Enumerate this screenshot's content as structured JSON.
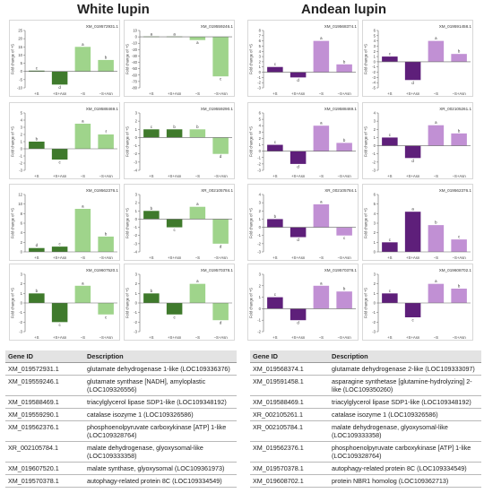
{
  "titles": {
    "white": "White lupin",
    "andean": "Andean lupin"
  },
  "colors": {
    "white_dark": "#3f7a2c",
    "white_light": "#9fd48b",
    "andean_dark": "#5e1f7a",
    "andean_light": "#c190d4"
  },
  "chart_data": [
    {
      "type": "bar",
      "group": "white",
      "gene": "XM_019572931.1",
      "categories": [
        "+S",
        "+S+Asn",
        "−S",
        "−S+Asn"
      ],
      "values": [
        0.5,
        -8,
        15,
        7
      ],
      "letters": [
        "c",
        "d",
        "a",
        "b"
      ],
      "ylim": [
        -10,
        25
      ],
      "yticks": [
        -10,
        -5,
        0,
        5,
        10,
        15,
        20,
        25
      ],
      "ylabel": "Fold change of +S"
    },
    {
      "type": "bar",
      "group": "white",
      "gene": "XM_019559246.1",
      "categories": [
        "+S",
        "+S+Asn",
        "−S",
        "−S+Asn"
      ],
      "values": [
        0.5,
        0.5,
        -5,
        -62
      ],
      "letters": [
        "a",
        "a",
        "a",
        "c"
      ],
      "ylim": [
        -80,
        10
      ],
      "yticks": [
        -80,
        -70,
        -60,
        -50,
        -40,
        -30,
        -20,
        -10,
        0,
        10
      ],
      "ylabel": "Fold change of +S"
    },
    {
      "type": "bar",
      "group": "white",
      "gene": "XM_019588469.1",
      "categories": [
        "+S",
        "+S+Asn",
        "−S",
        "−S+Asn"
      ],
      "values": [
        1,
        -1.5,
        3.5,
        2
      ],
      "letters": [
        "b",
        "c",
        "a",
        "f"
      ],
      "ylim": [
        -3,
        5
      ],
      "yticks": [
        -3,
        -2,
        -1,
        0,
        1,
        2,
        3,
        4,
        5
      ],
      "ylabel": "Fold change of +S"
    },
    {
      "type": "bar",
      "group": "white",
      "gene": "XM_019559290.1",
      "categories": [
        "+S",
        "+S+Asn",
        "−S",
        "−S+Asn"
      ],
      "values": [
        1,
        1,
        1,
        -2
      ],
      "letters": [
        "c",
        "b",
        "b",
        "d"
      ],
      "ylim": [
        -4,
        3
      ],
      "yticks": [
        -4,
        -3,
        -2,
        -1,
        0,
        1,
        2,
        3
      ],
      "ylabel": "Fold change of +S"
    },
    {
      "type": "bar",
      "group": "white",
      "gene": "XM_019562376.1",
      "categories": [
        "+S",
        "+S+Asn",
        "−S",
        "−S+Asn"
      ],
      "values": [
        0.8,
        1.1,
        9,
        3.2
      ],
      "letters": [
        "d",
        "c",
        "a",
        "b"
      ],
      "ylim": [
        0,
        12
      ],
      "yticks": [
        0,
        2,
        4,
        6,
        8,
        10,
        12
      ],
      "ylabel": "Fold change of +S"
    },
    {
      "type": "bar",
      "group": "white",
      "gene": "XR_002105784.1",
      "categories": [
        "+S",
        "+S+Asn",
        "−S",
        "−S+Asn"
      ],
      "values": [
        1,
        -1,
        1.5,
        -3
      ],
      "letters": [
        "b",
        "c",
        "a",
        "d"
      ],
      "ylim": [
        -4,
        3
      ],
      "yticks": [
        -4,
        -3,
        -2,
        -1,
        0,
        1,
        2,
        3
      ],
      "ylabel": "Fold change of +S"
    },
    {
      "type": "bar",
      "group": "white",
      "gene": "XM_019607520.1",
      "categories": [
        "+S",
        "+S+Asn",
        "−S",
        "−S+Asn"
      ],
      "values": [
        1,
        -2,
        1.8,
        -1.2
      ],
      "letters": [
        "b",
        "c",
        "a",
        "c"
      ],
      "ylim": [
        -3,
        3
      ],
      "yticks": [
        -3,
        -2,
        -1,
        0,
        1,
        2,
        3
      ],
      "ylabel": "Fold change of +S"
    },
    {
      "type": "bar",
      "group": "white",
      "gene": "XM_019570378.1",
      "categories": [
        "+S",
        "+S+Asn",
        "−S",
        "−S+Asn"
      ],
      "values": [
        1,
        -1.2,
        2,
        -1.8
      ],
      "letters": [
        "b",
        "c",
        "a",
        "d"
      ],
      "ylim": [
        -3,
        3
      ],
      "yticks": [
        -3,
        -2,
        -1,
        0,
        1,
        2,
        3
      ],
      "ylabel": "Fold change of +S"
    },
    {
      "type": "bar",
      "group": "andean",
      "gene": "XM_019568374.1",
      "categories": [
        "+S",
        "+S+Asn",
        "−S",
        "−S+Asn"
      ],
      "values": [
        1,
        -1,
        6,
        1.5
      ],
      "letters": [
        "c",
        "d",
        "a",
        "b"
      ],
      "ylim": [
        -3,
        8
      ],
      "yticks": [
        -3,
        -2,
        -1,
        0,
        1,
        2,
        3,
        4,
        5,
        6,
        7,
        8
      ],
      "ylabel": "Fold change of +S"
    },
    {
      "type": "bar",
      "group": "andean",
      "gene": "XM_019591458.1",
      "categories": [
        "+S",
        "+S+Asn",
        "−S",
        "−S+Asn"
      ],
      "values": [
        1,
        -3.5,
        4,
        1.5
      ],
      "letters": [
        "c",
        "d",
        "a",
        "b"
      ],
      "ylim": [
        -5,
        6
      ],
      "yticks": [
        -5,
        -4,
        -3,
        -2,
        -1,
        0,
        1,
        2,
        3,
        4,
        5,
        6
      ],
      "ylabel": "Fold change of +S"
    },
    {
      "type": "bar",
      "group": "andean",
      "gene": "XM_019588469.1",
      "categories": [
        "+S",
        "+S+Asn",
        "−S",
        "−S+Asn"
      ],
      "values": [
        1,
        -2,
        4,
        1.3
      ],
      "letters": [
        "c",
        "d",
        "a",
        "b"
      ],
      "ylim": [
        -3,
        6
      ],
      "yticks": [
        -3,
        -2,
        -1,
        0,
        1,
        2,
        3,
        4,
        5,
        6
      ],
      "ylabel": "Fold change of +S"
    },
    {
      "type": "bar",
      "group": "andean",
      "gene": "XR_002105261.1",
      "categories": [
        "+S",
        "+S+Asn",
        "−S",
        "−S+Asn"
      ],
      "values": [
        1,
        -1.5,
        2.5,
        1.5
      ],
      "letters": [
        "c",
        "d",
        "a",
        "b"
      ],
      "ylim": [
        -3,
        4
      ],
      "yticks": [
        -3,
        -2,
        -1,
        0,
        1,
        2,
        3,
        4
      ],
      "ylabel": "Fold change of +S"
    },
    {
      "type": "bar",
      "group": "andean",
      "gene": "XR_002105784.1",
      "categories": [
        "+S",
        "+S+Asn",
        "−S",
        "−S+Asn"
      ],
      "values": [
        1,
        -1.2,
        2.8,
        -1
      ],
      "letters": [
        "b",
        "d",
        "a",
        "c"
      ],
      "ylim": [
        -3,
        4
      ],
      "yticks": [
        -3,
        -2,
        -1,
        0,
        1,
        2,
        3,
        4
      ],
      "ylabel": "Fold change of +S"
    },
    {
      "type": "bar",
      "group": "andean",
      "gene": "XM_019562376.1",
      "categories": [
        "+S",
        "+S+Asn",
        "−S",
        "−S+Asn"
      ],
      "values": [
        1,
        4.2,
        2.8,
        1.3
      ],
      "letters": [
        "c",
        "a",
        "b",
        "c"
      ],
      "ylim": [
        0,
        6
      ],
      "yticks": [
        0,
        1,
        2,
        3,
        4,
        5,
        6
      ],
      "ylabel": "Fold change of +S"
    },
    {
      "type": "bar",
      "group": "andean",
      "gene": "XM_019570378.1",
      "categories": [
        "+S",
        "+S+Asn",
        "−S",
        "−S+Asn"
      ],
      "values": [
        1,
        -1,
        2,
        1.5
      ],
      "letters": [
        "c",
        "d",
        "a",
        "b"
      ],
      "ylim": [
        -2,
        3
      ],
      "yticks": [
        -2,
        -1,
        0,
        1,
        2,
        3
      ],
      "ylabel": "Fold change of +S"
    },
    {
      "type": "bar",
      "group": "andean",
      "gene": "XM_019608702.1",
      "categories": [
        "+S",
        "+S+Asn",
        "−S",
        "−S+Asn"
      ],
      "values": [
        1,
        -1.5,
        2,
        1.5
      ],
      "letters": [
        "c",
        "c",
        "a",
        "b"
      ],
      "ylim": [
        -3,
        3
      ],
      "yticks": [
        -3,
        -2,
        -1,
        0,
        1,
        2,
        3
      ],
      "ylabel": "Fold change of +S"
    }
  ],
  "tables": {
    "white": {
      "headers": [
        "Gene ID",
        "Description"
      ],
      "rows": [
        [
          "XM_019572931.1",
          "glutamate dehydrogenase 1-like (LOC109336376)"
        ],
        [
          "XM_019559246.1",
          "glutamate synthase [NADH], amyloplastic (LOC109326556)"
        ],
        [
          "XM_019588469.1",
          "triacylglycerol lipase SDP1-like (LOC109348192)"
        ],
        [
          "XM_019559290.1",
          "catalase isozyme 1 (LOC109326586)"
        ],
        [
          "XM_019562376.1",
          "phosphoenolpyruvate carboxykinase [ATP] 1-like (LOC109328764)"
        ],
        [
          "XR_002105784.1",
          "malate dehydrogenase, glyoxysomal-like (LOC109333358)"
        ],
        [
          "XM_019607520.1",
          "malate synthase, glyoxysomal (LOC109361973)"
        ],
        [
          "XM_019570378.1",
          "autophagy-related protein 8C (LOC109334549)"
        ]
      ]
    },
    "andean": {
      "headers": [
        "Gene ID",
        "Description"
      ],
      "rows": [
        [
          "XM_019568374.1",
          "glutamate dehydrogenase 2-like (LOC109333097)"
        ],
        [
          "XM_019591458.1",
          "asparagine synthetase [glutamine-hydrolyzing] 2-like (LOC109350260)"
        ],
        [
          "XM_019588469.1",
          "triacylglycerol lipase SDP1-like (LOC109348192)"
        ],
        [
          "XR_002105261.1",
          "catalase isozyme 1 (LOC109326586)"
        ],
        [
          "XR_002105784.1",
          "malate dehydrogenase, glyoxysomal-like (LOC109333358)"
        ],
        [
          "XM_019562376.1",
          "phosphoenolpyruvate carboxykinase [ATP] 1-like (LOC109328764)"
        ],
        [
          "XM_019570378.1",
          "autophagy-related protein 8C (LOC109334549)"
        ],
        [
          "XM_019608702.1",
          "protein NBR1 homolog (LOC109362713)"
        ]
      ]
    }
  }
}
